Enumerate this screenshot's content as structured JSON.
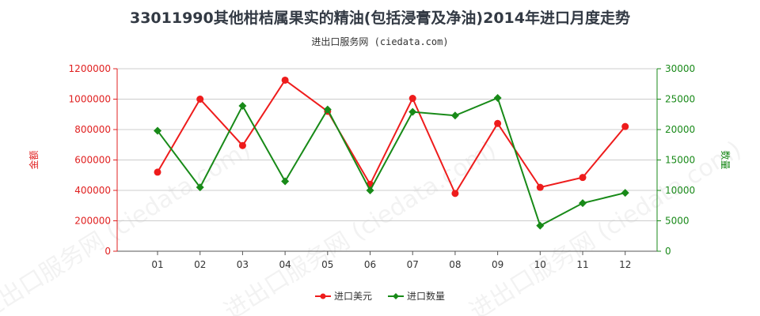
{
  "title": "33011990其他柑桔属果实的精油(包括浸膏及净油)2014年进口月度走势",
  "subtitle": "进出口服务网 (ciedata.com)",
  "watermark": "进出口服务网 (ciedata.com)",
  "colors": {
    "left_axis": "#e02020",
    "right_axis": "#1a8a1a",
    "series_amount": "#ee1c1c",
    "series_quantity": "#188a18",
    "grid": "#cccccc",
    "axis": "#555555"
  },
  "chart_data": {
    "type": "line",
    "categories": [
      "01",
      "02",
      "03",
      "04",
      "05",
      "06",
      "07",
      "08",
      "09",
      "10",
      "11",
      "12"
    ],
    "y_left": {
      "label": "金额",
      "ticks": [
        "0",
        "200000",
        "400000",
        "600000",
        "800000",
        "1000000",
        "1200000"
      ],
      "ylim": [
        0,
        1200000
      ]
    },
    "y_right": {
      "label": "数量",
      "ticks": [
        "0",
        "5000",
        "10000",
        "15000",
        "20000",
        "25000",
        "30000"
      ],
      "ylim": [
        0,
        30000
      ]
    },
    "series": [
      {
        "name": "进口美元",
        "axis": "left",
        "marker": "circle",
        "values": [
          520000,
          1000000,
          695000,
          1125000,
          920000,
          440000,
          1005000,
          380000,
          840000,
          420000,
          485000,
          820000
        ]
      },
      {
        "name": "进口数量",
        "axis": "right",
        "marker": "diamond",
        "values": [
          19800,
          10500,
          23900,
          11500,
          23300,
          10000,
          22900,
          22300,
          25200,
          4200,
          7900,
          9600
        ]
      }
    ],
    "grid": true,
    "legend_position": "bottom"
  }
}
